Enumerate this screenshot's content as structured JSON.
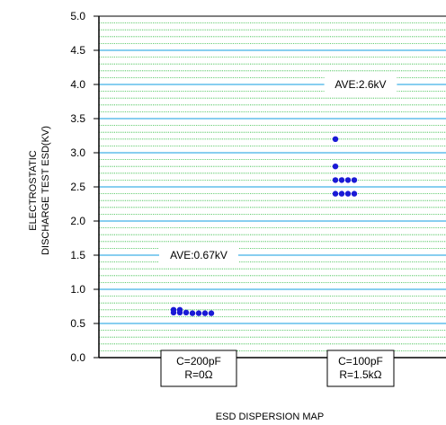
{
  "chart_data": {
    "type": "scatter",
    "ylabel_lines": [
      "ELECTROSTATIC",
      "DISCHARGE TEST ESD(KV)"
    ],
    "caption": "ESD DISPERSION MAP",
    "ylim": [
      0,
      5
    ],
    "yticks": [
      "0.0",
      "0.5",
      "1.0",
      "1.5",
      "2.0",
      "2.5",
      "3.0",
      "3.5",
      "4.0",
      "4.5",
      "5.0"
    ],
    "minor_grid_step": 0.1,
    "major_grid_step": 0.5,
    "grid": true,
    "colors": {
      "points": "#1a1ad6",
      "major_grid": "#40b0e8",
      "minor_grid": "#33bb44"
    },
    "categories": [
      {
        "lines": [
          "C=200pF",
          "R=0Ω"
        ]
      },
      {
        "lines": [
          "C=100pF",
          "R=1.5kΩ"
        ]
      }
    ],
    "annotations": [
      {
        "text": "AVE:0.67kV",
        "category": 0,
        "y": 1.5
      },
      {
        "text": "AVE:2.6kV",
        "category": 1,
        "y": 4.0
      }
    ],
    "series": [
      {
        "category": 0,
        "points": [
          {
            "offset": 0,
            "y": 0.7
          },
          {
            "offset": 0,
            "y": 0.66
          },
          {
            "offset": 1,
            "y": 0.7
          },
          {
            "offset": 1,
            "y": 0.66
          },
          {
            "offset": 2,
            "y": 0.66
          },
          {
            "offset": 3,
            "y": 0.65
          },
          {
            "offset": 4,
            "y": 0.65
          },
          {
            "offset": 5,
            "y": 0.65
          },
          {
            "offset": 6,
            "y": 0.65
          }
        ]
      },
      {
        "category": 1,
        "points": [
          {
            "offset": 0,
            "y": 3.2
          },
          {
            "offset": 0,
            "y": 2.8
          },
          {
            "offset": 0,
            "y": 2.6
          },
          {
            "offset": 1,
            "y": 2.6
          },
          {
            "offset": 2,
            "y": 2.6
          },
          {
            "offset": 3,
            "y": 2.6
          },
          {
            "offset": 0,
            "y": 2.4
          },
          {
            "offset": 1,
            "y": 2.4
          },
          {
            "offset": 2,
            "y": 2.4
          },
          {
            "offset": 3,
            "y": 2.4
          }
        ]
      }
    ]
  }
}
